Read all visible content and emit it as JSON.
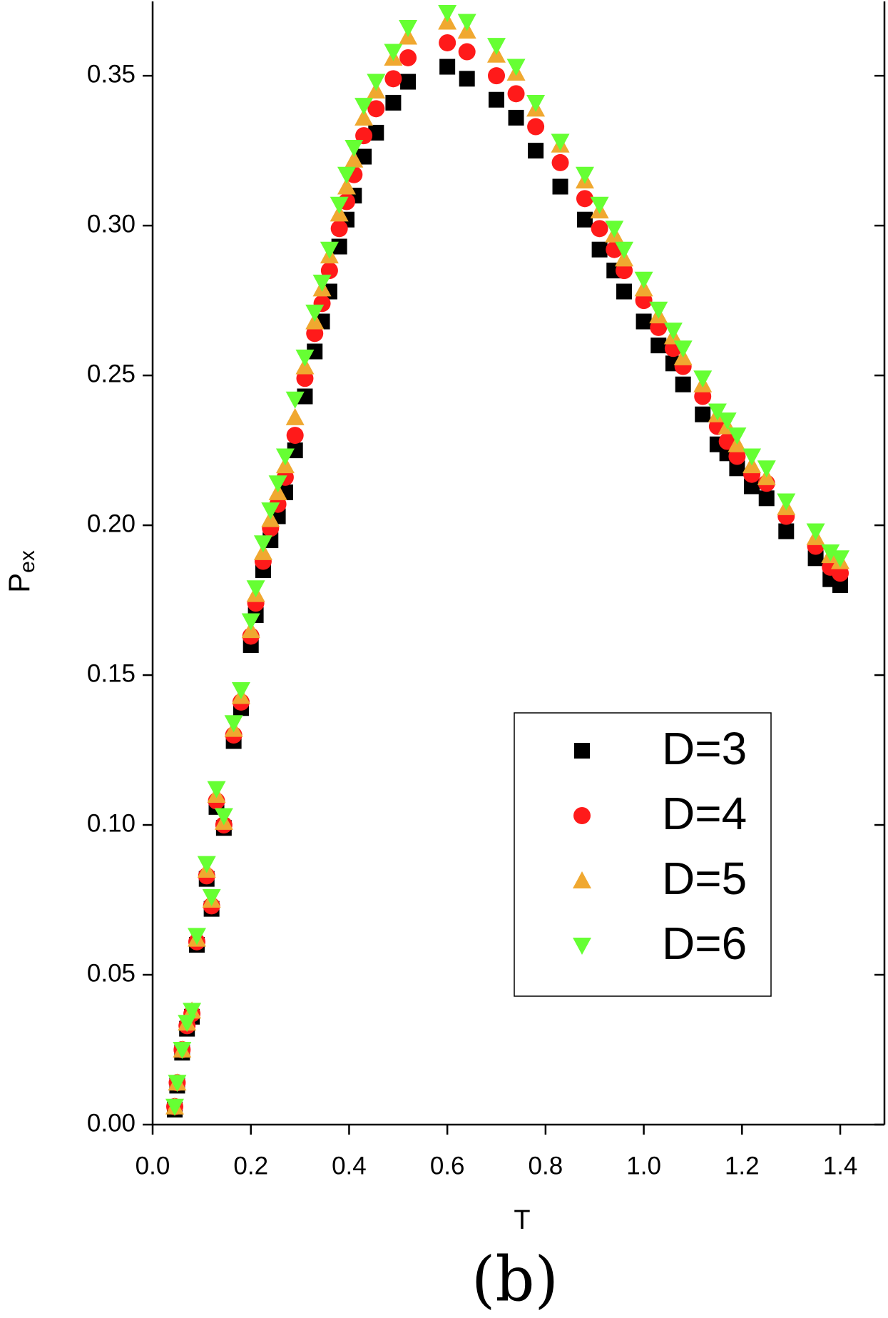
{
  "chart_data": {
    "type": "scatter",
    "x_label": "T",
    "y_label": "P",
    "y_label_subscript": "ex",
    "caption": "(b)",
    "x": [
      0.045,
      0.05,
      0.06,
      0.07,
      0.08,
      0.09,
      0.11,
      0.12,
      0.13,
      0.145,
      0.165,
      0.18,
      0.2,
      0.21,
      0.225,
      0.24,
      0.255,
      0.27,
      0.29,
      0.31,
      0.33,
      0.345,
      0.36,
      0.38,
      0.395,
      0.41,
      0.43,
      0.455,
      0.49,
      0.52,
      0.6,
      0.64,
      0.7,
      0.74,
      0.78,
      0.83,
      0.88,
      0.91,
      0.94,
      0.96,
      1.0,
      1.03,
      1.06,
      1.08,
      1.12,
      1.15,
      1.17,
      1.19,
      1.22,
      1.25,
      1.29,
      1.35,
      1.38,
      1.4
    ],
    "series": [
      {
        "name": "D=3",
        "color": "#000000",
        "marker": "square",
        "values": [
          0.005,
          0.013,
          0.024,
          0.032,
          0.036,
          0.06,
          0.082,
          0.072,
          0.106,
          0.099,
          0.128,
          0.139,
          0.16,
          0.17,
          0.185,
          0.195,
          0.203,
          0.211,
          0.225,
          0.243,
          0.258,
          0.268,
          0.278,
          0.293,
          0.302,
          0.31,
          0.323,
          0.331,
          0.341,
          0.348,
          0.353,
          0.349,
          0.342,
          0.336,
          0.325,
          0.313,
          0.302,
          0.292,
          0.285,
          0.278,
          0.268,
          0.26,
          0.254,
          0.247,
          0.237,
          0.227,
          0.224,
          0.219,
          0.213,
          0.209,
          0.198,
          0.189,
          0.182,
          0.18
        ]
      },
      {
        "name": "D=4",
        "color": "#ff1a1a",
        "marker": "circle",
        "values": [
          0.006,
          0.014,
          0.025,
          0.033,
          0.037,
          0.061,
          0.083,
          0.073,
          0.108,
          0.1,
          0.13,
          0.141,
          0.163,
          0.174,
          0.188,
          0.199,
          0.207,
          0.216,
          0.23,
          0.249,
          0.264,
          0.274,
          0.285,
          0.299,
          0.308,
          0.317,
          0.33,
          0.339,
          0.349,
          0.356,
          0.361,
          0.358,
          0.35,
          0.344,
          0.333,
          0.321,
          0.309,
          0.299,
          0.292,
          0.285,
          0.275,
          0.266,
          0.259,
          0.253,
          0.243,
          0.233,
          0.228,
          0.223,
          0.217,
          0.214,
          0.203,
          0.193,
          0.186,
          0.184
        ]
      },
      {
        "name": "D=5",
        "color": "#f0a830",
        "marker": "triangle-up",
        "values": [
          0.006,
          0.014,
          0.025,
          0.034,
          0.038,
          0.062,
          0.085,
          0.075,
          0.11,
          0.101,
          0.132,
          0.143,
          0.165,
          0.177,
          0.191,
          0.202,
          0.211,
          0.22,
          0.236,
          0.253,
          0.268,
          0.279,
          0.29,
          0.304,
          0.313,
          0.322,
          0.336,
          0.345,
          0.356,
          0.363,
          0.368,
          0.365,
          0.357,
          0.351,
          0.339,
          0.327,
          0.315,
          0.305,
          0.297,
          0.289,
          0.279,
          0.27,
          0.263,
          0.256,
          0.247,
          0.237,
          0.233,
          0.227,
          0.22,
          0.216,
          0.206,
          0.196,
          0.19,
          0.188
        ]
      },
      {
        "name": "D=6",
        "color": "#66ff33",
        "marker": "triangle-down",
        "values": [
          0.006,
          0.014,
          0.025,
          0.034,
          0.038,
          0.063,
          0.087,
          0.076,
          0.112,
          0.103,
          0.134,
          0.145,
          0.168,
          0.179,
          0.194,
          0.205,
          0.214,
          0.223,
          0.242,
          0.256,
          0.271,
          0.281,
          0.292,
          0.307,
          0.317,
          0.326,
          0.34,
          0.348,
          0.358,
          0.366,
          0.371,
          0.368,
          0.36,
          0.353,
          0.341,
          0.328,
          0.317,
          0.307,
          0.299,
          0.292,
          0.282,
          0.272,
          0.265,
          0.259,
          0.249,
          0.238,
          0.235,
          0.23,
          0.223,
          0.219,
          0.208,
          0.198,
          0.191,
          0.189
        ]
      }
    ],
    "xlim": [
      0,
      1.49
    ],
    "ylim": [
      0,
      0.3748
    ],
    "xticks": [
      {
        "value": 0,
        "label": "0.0"
      },
      0.2,
      0.4,
      0.6,
      0.8,
      {
        "value": 1,
        "label": "1.0"
      },
      1.2,
      1.4
    ],
    "yticks": [
      {
        "value": 0,
        "label": "0.00"
      },
      0.05,
      {
        "value": 0.1,
        "label": "0.10"
      },
      0.15,
      {
        "value": 0.2,
        "label": "0.20"
      },
      0.25,
      {
        "value": 0.3,
        "label": "0.30"
      },
      0.35
    ],
    "grid": false,
    "legend": "lower right"
  }
}
